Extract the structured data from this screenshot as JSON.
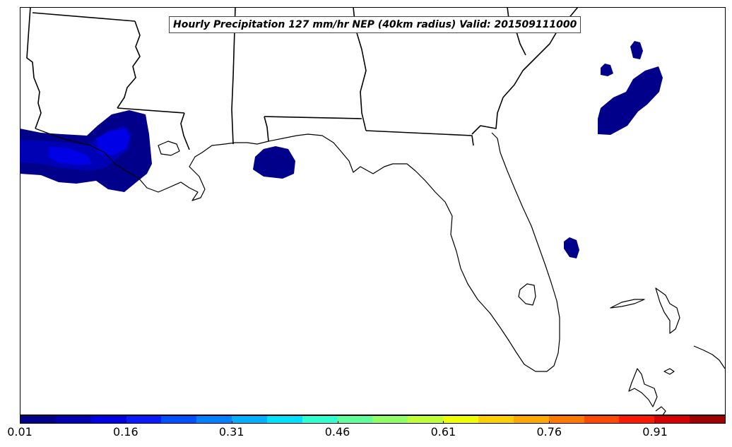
{
  "map": {
    "title": "Hourly Precipitation 127 mm/hr NEP (40km radius) Valid: 201509111000"
  },
  "colorbar": {
    "colors": [
      "#00008b",
      "#0000b4",
      "#0000e6",
      "#0a1aff",
      "#0050ff",
      "#0080ff",
      "#00b0ff",
      "#00e0ff",
      "#30ffd0",
      "#60ff9c",
      "#90ff68",
      "#c0ff36",
      "#f0ff00",
      "#ffd000",
      "#ffa800",
      "#ff7800",
      "#ff4800",
      "#ff1800",
      "#d80000",
      "#a00000"
    ],
    "ticks": [
      "0.01",
      "0.16",
      "0.31",
      "0.46",
      "0.61",
      "0.76",
      "0.91"
    ]
  }
}
